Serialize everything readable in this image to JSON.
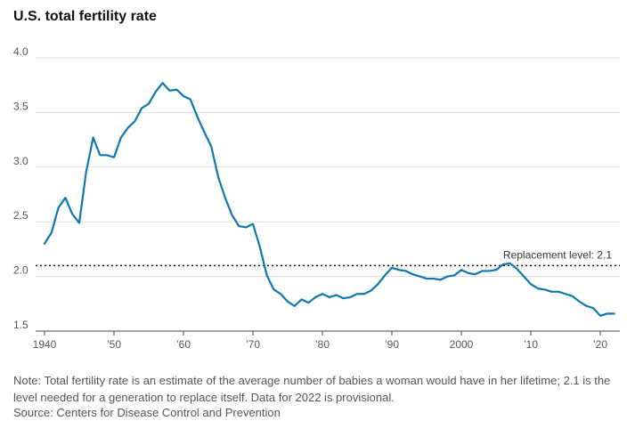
{
  "chart_data": {
    "type": "line",
    "title": "U.S. total fertility rate",
    "xlabel": "",
    "ylabel": "",
    "xlim": [
      1938.5,
      2023
    ],
    "ylim": [
      1.5,
      4.0
    ],
    "y_ticks": [
      {
        "value": 4.0,
        "label": "4.0"
      },
      {
        "value": 3.5,
        "label": "3.5"
      },
      {
        "value": 3.0,
        "label": "3.0"
      },
      {
        "value": 2.5,
        "label": "2.5"
      },
      {
        "value": 2.0,
        "label": "2.0"
      },
      {
        "value": 1.5,
        "label": "1.5"
      }
    ],
    "x_ticks": [
      {
        "value": 1940,
        "label": "1940"
      },
      {
        "value": 1950,
        "label": "’50"
      },
      {
        "value": 1960,
        "label": "’60"
      },
      {
        "value": 1970,
        "label": "’70"
      },
      {
        "value": 1980,
        "label": "’80"
      },
      {
        "value": 1990,
        "label": "’90"
      },
      {
        "value": 2000,
        "label": "2000"
      },
      {
        "value": 2010,
        "label": "’10"
      },
      {
        "value": 2020,
        "label": "’20"
      }
    ],
    "grid": "horizontal",
    "line_color": "#0f77b0",
    "replacement": {
      "value": 2.1,
      "label": "Replacement level: 2.1"
    },
    "series": [
      {
        "x": [
          1940,
          1941,
          1942,
          1943,
          1944,
          1945,
          1946,
          1947,
          1948,
          1949,
          1950,
          1951,
          1952,
          1953,
          1954,
          1955,
          1956,
          1957,
          1958,
          1959,
          1960,
          1961,
          1962,
          1963,
          1964,
          1965,
          1966,
          1967,
          1968,
          1969,
          1970,
          1971,
          1972,
          1973,
          1974,
          1975,
          1976,
          1977,
          1978,
          1979,
          1980,
          1981,
          1982,
          1983,
          1984,
          1985,
          1986,
          1987,
          1988,
          1989,
          1990,
          1991,
          1992,
          1993,
          1994,
          1995,
          1996,
          1997,
          1998,
          1999,
          2000,
          2001,
          2002,
          2003,
          2004,
          2005,
          2006,
          2007,
          2008,
          2009,
          2010,
          2011,
          2012,
          2013,
          2014,
          2015,
          2016,
          2017,
          2018,
          2019,
          2020,
          2021,
          2022
        ],
        "values": [
          2.3,
          2.4,
          2.63,
          2.72,
          2.57,
          2.49,
          2.96,
          3.27,
          3.11,
          3.11,
          3.09,
          3.27,
          3.36,
          3.42,
          3.54,
          3.58,
          3.69,
          3.77,
          3.7,
          3.71,
          3.65,
          3.62,
          3.46,
          3.32,
          3.19,
          2.91,
          2.72,
          2.56,
          2.46,
          2.45,
          2.48,
          2.27,
          2.01,
          1.88,
          1.84,
          1.77,
          1.73,
          1.79,
          1.76,
          1.81,
          1.84,
          1.81,
          1.83,
          1.8,
          1.81,
          1.84,
          1.84,
          1.87,
          1.93,
          2.01,
          2.08,
          2.06,
          2.05,
          2.02,
          2.0,
          1.98,
          1.98,
          1.97,
          2.0,
          2.01,
          2.06,
          2.03,
          2.02,
          2.05,
          2.05,
          2.06,
          2.11,
          2.12,
          2.07,
          2.0,
          1.93,
          1.89,
          1.88,
          1.86,
          1.86,
          1.84,
          1.82,
          1.77,
          1.73,
          1.71,
          1.64,
          1.66,
          1.66
        ]
      }
    ]
  },
  "note": "Note: Total fertility rate is an estimate of the average number of babies a woman would have in her lifetime; 2.1 is the level needed for a generation to replace itself. Data for 2022 is provisional.",
  "source": "Source: Centers for Disease Control and Prevention"
}
